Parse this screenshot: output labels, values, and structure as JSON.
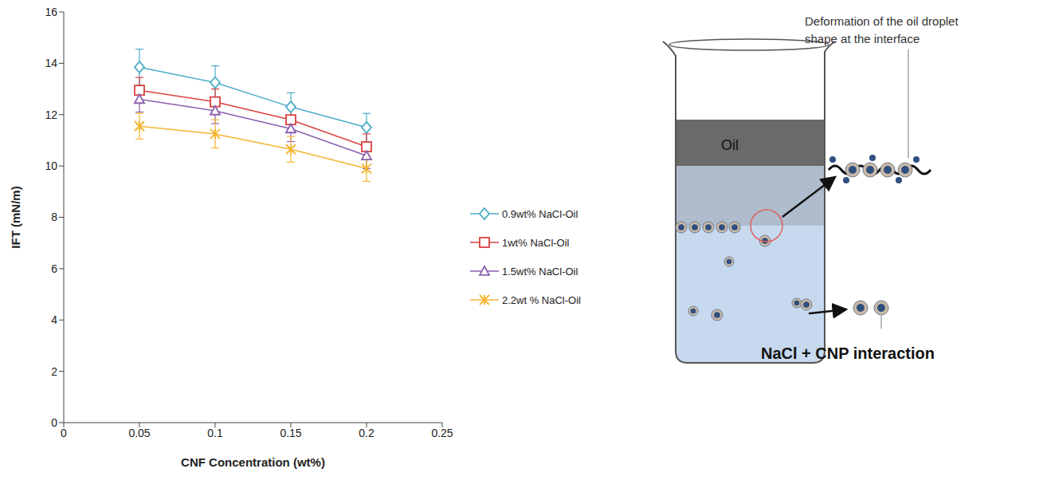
{
  "chart_data": {
    "type": "line",
    "xlabel": "CNF Concentration (wt%)",
    "ylabel": "IFT (mN/m)",
    "x": [
      0.05,
      0.1,
      0.15,
      0.2
    ],
    "xlim": [
      0,
      0.25
    ],
    "xticks": [
      0,
      0.05,
      0.1,
      0.15,
      0.2,
      0.25
    ],
    "ylim": [
      0,
      16
    ],
    "yticks": [
      0,
      2,
      4,
      6,
      8,
      10,
      12,
      14,
      16
    ],
    "grid": false,
    "legend": "right",
    "series": [
      {
        "name": "0.9wt% NaCl-Oil",
        "color": "#4bacc6",
        "marker": "diamond",
        "values": [
          13.85,
          13.25,
          12.3,
          11.5
        ],
        "errors": [
          0.7,
          0.65,
          0.55,
          0.55
        ]
      },
      {
        "name": "1wt% NaCl-Oil",
        "color": "#d9423f",
        "marker": "square",
        "values": [
          12.95,
          12.5,
          11.8,
          10.75
        ],
        "errors": [
          0.5,
          0.5,
          0.5,
          0.5
        ]
      },
      {
        "name": "1.5wt% NaCl-Oil",
        "color": "#8a5fb0",
        "marker": "triangle",
        "values": [
          12.6,
          12.15,
          11.45,
          10.4
        ],
        "errors": [
          0.5,
          0.5,
          0.5,
          0.5
        ]
      },
      {
        "name": "2.2wt % NaCl-Oil",
        "color": "#f2b630",
        "marker": "x",
        "values": [
          11.55,
          11.25,
          10.65,
          9.9
        ],
        "errors": [
          0.5,
          0.55,
          0.5,
          0.5
        ]
      }
    ]
  },
  "diagram": {
    "oil_label": "Oil",
    "interface_label": "Deformation of the oil droplet shape at the interface",
    "bulk_label": "NaCl + CNP interaction"
  }
}
